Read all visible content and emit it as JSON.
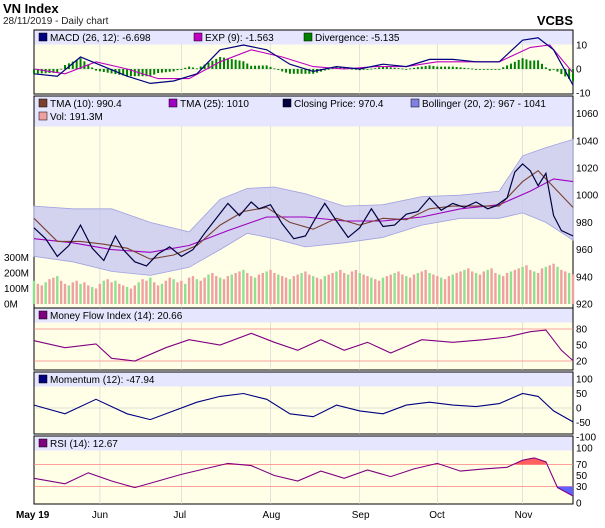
{
  "header": {
    "title": "VN Index",
    "subtitle": "28/11/2019 - Daily chart",
    "broker": "VCBS"
  },
  "colors": {
    "panel_bg": "#ffffe8",
    "legend_bg": "#e6e6ff",
    "border": "#000000",
    "macd": "#000080",
    "exp": "#c000c0",
    "divergence_pos": "#008000",
    "divergence_neg": "#008000",
    "tma10": "#7a4030",
    "tma25": "#a000c0",
    "close": "#000040",
    "bollinger_fill": "#c8c8f0",
    "vol_up": "#90e090",
    "vol_down": "#f0a0a0",
    "mfi": "#800080",
    "momentum": "#000080",
    "rsi": "#800080",
    "rsi_over": "#ff6060",
    "rsi_under": "#6060ff",
    "ref_line": "#ff8080"
  },
  "months": [
    "May 19",
    "Jun",
    "Jul",
    "Aug",
    "Sep",
    "Oct",
    "Nov"
  ],
  "panels": {
    "macd": {
      "legend": [
        {
          "label": "MACD (26, 12): -6.698",
          "color": "#000080"
        },
        {
          "label": "EXP (9): -1.563",
          "color": "#c000c0"
        },
        {
          "label": "Divergence: -5.135",
          "color": "#008000"
        }
      ],
      "yticks": [
        "10",
        "0",
        "-10"
      ]
    },
    "price": {
      "legend_row1": [
        {
          "label": "TMA (10): 990.4",
          "color": "#7a4030"
        },
        {
          "label": "TMA (25): 1010",
          "color": "#a000c0"
        },
        {
          "label": "Closing Price: 970.4",
          "color": "#000040"
        },
        {
          "label": "Bollinger (20, 2): 967 - 1041",
          "color": "#8080e0"
        }
      ],
      "legend_row2": [
        {
          "label": "Vol: 191.3M",
          "color": "#f0a0a0"
        }
      ],
      "yticks": [
        "1060",
        "1040",
        "1020",
        "1000",
        "980",
        "960",
        "940",
        "920"
      ],
      "vol_ticks": [
        "300M",
        "200M",
        "100M",
        "0M"
      ]
    },
    "mfi": {
      "legend": [
        {
          "label": "Money Flow Index (14): 20.66",
          "color": "#800080"
        }
      ],
      "yticks": [
        "80",
        "50",
        "20"
      ]
    },
    "momentum": {
      "legend": [
        {
          "label": "Momentum (12): -47.94",
          "color": "#000080"
        }
      ],
      "yticks": [
        "100",
        "50",
        "0",
        "-50",
        "-100"
      ]
    },
    "rsi": {
      "legend": [
        {
          "label": "RSI (14): 12.67",
          "color": "#800080"
        }
      ],
      "yticks": [
        "100",
        "70",
        "50",
        "30",
        "0"
      ]
    }
  },
  "chart_data": {
    "type": "line",
    "n_days": 140,
    "month_start_index": [
      0,
      17,
      38,
      61,
      84,
      104,
      126
    ],
    "close_points": [
      [
        0,
        976
      ],
      [
        3,
        968
      ],
      [
        6,
        955
      ],
      [
        9,
        963
      ],
      [
        12,
        978
      ],
      [
        15,
        961
      ],
      [
        18,
        952
      ],
      [
        21,
        970
      ],
      [
        23,
        960
      ],
      [
        26,
        951
      ],
      [
        29,
        948
      ],
      [
        32,
        957
      ],
      [
        35,
        962
      ],
      [
        38,
        955
      ],
      [
        41,
        960
      ],
      [
        44,
        972
      ],
      [
        47,
        983
      ],
      [
        50,
        994
      ],
      [
        53,
        985
      ],
      [
        56,
        995
      ],
      [
        58,
        990
      ],
      [
        61,
        993
      ],
      [
        64,
        979
      ],
      [
        67,
        968
      ],
      [
        70,
        970
      ],
      [
        73,
        985
      ],
      [
        75,
        994
      ],
      [
        78,
        981
      ],
      [
        81,
        969
      ],
      [
        84,
        976
      ],
      [
        87,
        990
      ],
      [
        90,
        977
      ],
      [
        93,
        978
      ],
      [
        96,
        986
      ],
      [
        99,
        988
      ],
      [
        102,
        998
      ],
      [
        105,
        989
      ],
      [
        108,
        994
      ],
      [
        111,
        991
      ],
      [
        114,
        995
      ],
      [
        117,
        990
      ],
      [
        119,
        992
      ],
      [
        122,
        998
      ],
      [
        124,
        1017
      ],
      [
        126,
        1023
      ],
      [
        128,
        1018
      ],
      [
        130,
        1007
      ],
      [
        132,
        1016
      ],
      [
        134,
        985
      ],
      [
        136,
        974
      ],
      [
        139,
        970
      ]
    ],
    "tma10_points": [
      [
        0,
        983
      ],
      [
        6,
        966
      ],
      [
        12,
        966
      ],
      [
        18,
        964
      ],
      [
        24,
        961
      ],
      [
        30,
        953
      ],
      [
        36,
        956
      ],
      [
        42,
        963
      ],
      [
        48,
        978
      ],
      [
        54,
        988
      ],
      [
        60,
        991
      ],
      [
        66,
        980
      ],
      [
        72,
        975
      ],
      [
        78,
        983
      ],
      [
        84,
        978
      ],
      [
        90,
        983
      ],
      [
        96,
        982
      ],
      [
        102,
        990
      ],
      [
        108,
        992
      ],
      [
        114,
        992
      ],
      [
        120,
        992
      ],
      [
        126,
        1010
      ],
      [
        130,
        1018
      ],
      [
        134,
        1006
      ],
      [
        139,
        991
      ]
    ],
    "tma25_points": [
      [
        0,
        968
      ],
      [
        10,
        965
      ],
      [
        20,
        960
      ],
      [
        30,
        958
      ],
      [
        40,
        963
      ],
      [
        50,
        974
      ],
      [
        60,
        984
      ],
      [
        70,
        984
      ],
      [
        80,
        981
      ],
      [
        90,
        981
      ],
      [
        100,
        984
      ],
      [
        110,
        990
      ],
      [
        120,
        993
      ],
      [
        128,
        1003
      ],
      [
        134,
        1012
      ],
      [
        139,
        1010
      ]
    ],
    "boll_upper_points": [
      [
        0,
        992
      ],
      [
        10,
        990
      ],
      [
        20,
        990
      ],
      [
        30,
        980
      ],
      [
        40,
        973
      ],
      [
        48,
        997
      ],
      [
        55,
        1005
      ],
      [
        62,
        1006
      ],
      [
        70,
        1001
      ],
      [
        80,
        992
      ],
      [
        90,
        993
      ],
      [
        100,
        999
      ],
      [
        110,
        1000
      ],
      [
        120,
        1003
      ],
      [
        126,
        1029
      ],
      [
        132,
        1035
      ],
      [
        139,
        1041
      ]
    ],
    "boll_lower_points": [
      [
        0,
        955
      ],
      [
        10,
        951
      ],
      [
        20,
        944
      ],
      [
        30,
        941
      ],
      [
        40,
        947
      ],
      [
        48,
        960
      ],
      [
        55,
        972
      ],
      [
        62,
        968
      ],
      [
        70,
        962
      ],
      [
        80,
        965
      ],
      [
        90,
        969
      ],
      [
        100,
        978
      ],
      [
        110,
        983
      ],
      [
        120,
        983
      ],
      [
        126,
        987
      ],
      [
        132,
        980
      ],
      [
        139,
        967
      ]
    ],
    "volume_M": [
      150,
      130,
      120,
      140,
      160,
      170,
      180,
      150,
      130,
      120,
      140,
      150,
      130,
      140,
      120,
      110,
      100,
      130,
      150,
      160,
      140,
      150,
      130,
      120,
      110,
      100,
      120,
      140,
      160,
      150,
      170,
      140,
      120,
      130,
      150,
      170,
      160,
      140,
      150,
      130,
      170,
      180,
      160,
      150,
      170,
      190,
      200,
      180,
      170,
      160,
      180,
      190,
      200,
      210,
      220,
      200,
      180,
      170,
      190,
      200,
      210,
      220,
      200,
      190,
      180,
      170,
      160,
      180,
      190,
      200,
      210,
      190,
      180,
      170,
      160,
      180,
      190,
      200,
      210,
      220,
      200,
      190,
      210,
      220,
      200,
      190,
      180,
      170,
      160,
      150,
      170,
      180,
      190,
      200,
      210,
      190,
      180,
      170,
      190,
      200,
      210,
      220,
      200,
      190,
      180,
      170,
      160,
      180,
      190,
      200,
      210,
      220,
      230,
      210,
      200,
      190,
      210,
      220,
      230,
      200,
      190,
      180,
      200,
      210,
      220,
      230,
      240,
      250,
      220,
      210,
      200,
      230,
      240,
      250,
      260,
      240,
      220,
      210,
      200,
      191.3
    ],
    "macd_points": [
      [
        0,
        -2
      ],
      [
        6,
        -3
      ],
      [
        12,
        5
      ],
      [
        18,
        1
      ],
      [
        24,
        -3
      ],
      [
        30,
        -6
      ],
      [
        36,
        -5
      ],
      [
        42,
        -2
      ],
      [
        48,
        8
      ],
      [
        54,
        10
      ],
      [
        60,
        8
      ],
      [
        66,
        2
      ],
      [
        72,
        -1
      ],
      [
        78,
        1
      ],
      [
        84,
        0
      ],
      [
        90,
        2
      ],
      [
        96,
        1
      ],
      [
        102,
        4
      ],
      [
        108,
        4
      ],
      [
        114,
        3
      ],
      [
        120,
        3
      ],
      [
        126,
        12
      ],
      [
        130,
        13
      ],
      [
        134,
        8
      ],
      [
        139,
        -6.698
      ]
    ],
    "exp_points": [
      [
        0,
        0
      ],
      [
        8,
        -2
      ],
      [
        16,
        3
      ],
      [
        24,
        0
      ],
      [
        32,
        -4
      ],
      [
        40,
        -4
      ],
      [
        48,
        3
      ],
      [
        56,
        8
      ],
      [
        64,
        5
      ],
      [
        72,
        1
      ],
      [
        80,
        0
      ],
      [
        88,
        1
      ],
      [
        96,
        1
      ],
      [
        104,
        3
      ],
      [
        112,
        3
      ],
      [
        120,
        3
      ],
      [
        128,
        9
      ],
      [
        133,
        10
      ],
      [
        139,
        -1.563
      ]
    ],
    "mfi_points": [
      [
        0,
        58
      ],
      [
        8,
        45
      ],
      [
        16,
        52
      ],
      [
        20,
        25
      ],
      [
        26,
        20
      ],
      [
        34,
        45
      ],
      [
        40,
        60
      ],
      [
        48,
        50
      ],
      [
        56,
        72
      ],
      [
        62,
        55
      ],
      [
        68,
        40
      ],
      [
        74,
        60
      ],
      [
        80,
        40
      ],
      [
        86,
        55
      ],
      [
        92,
        35
      ],
      [
        100,
        60
      ],
      [
        108,
        55
      ],
      [
        116,
        60
      ],
      [
        122,
        65
      ],
      [
        128,
        75
      ],
      [
        132,
        78
      ],
      [
        136,
        40
      ],
      [
        139,
        20.66
      ]
    ],
    "momentum_points": [
      [
        0,
        10
      ],
      [
        8,
        -20
      ],
      [
        16,
        30
      ],
      [
        24,
        -20
      ],
      [
        30,
        -40
      ],
      [
        36,
        -10
      ],
      [
        42,
        20
      ],
      [
        48,
        40
      ],
      [
        54,
        50
      ],
      [
        60,
        30
      ],
      [
        66,
        -20
      ],
      [
        72,
        -30
      ],
      [
        78,
        10
      ],
      [
        84,
        -10
      ],
      [
        90,
        -20
      ],
      [
        96,
        10
      ],
      [
        102,
        20
      ],
      [
        108,
        10
      ],
      [
        114,
        5
      ],
      [
        120,
        15
      ],
      [
        126,
        50
      ],
      [
        130,
        40
      ],
      [
        134,
        -10
      ],
      [
        139,
        -47.94
      ]
    ],
    "rsi_points": [
      [
        0,
        45
      ],
      [
        8,
        35
      ],
      [
        14,
        55
      ],
      [
        20,
        40
      ],
      [
        26,
        28
      ],
      [
        32,
        40
      ],
      [
        38,
        52
      ],
      [
        44,
        62
      ],
      [
        50,
        72
      ],
      [
        56,
        68
      ],
      [
        62,
        50
      ],
      [
        68,
        40
      ],
      [
        74,
        58
      ],
      [
        80,
        45
      ],
      [
        86,
        60
      ],
      [
        92,
        48
      ],
      [
        98,
        62
      ],
      [
        104,
        72
      ],
      [
        110,
        58
      ],
      [
        116,
        62
      ],
      [
        122,
        65
      ],
      [
        126,
        78
      ],
      [
        129,
        82
      ],
      [
        132,
        75
      ],
      [
        135,
        28
      ],
      [
        139,
        12.67
      ]
    ]
  }
}
